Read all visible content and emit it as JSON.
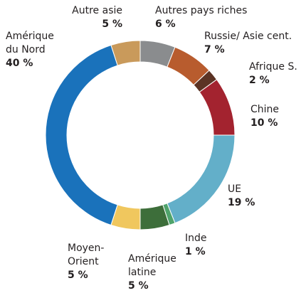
{
  "chart_data": {
    "type": "donut",
    "categories": [
      "Autre asie",
      "Autres pays riches",
      "Russie/ Asie cent.",
      "Afrique S.",
      "Chine",
      "UE",
      "Inde",
      "Amérique latine",
      "Moyen-Orient",
      "Amérique du Nord"
    ],
    "values": [
      5,
      6,
      7,
      2,
      10,
      19,
      1,
      5,
      5,
      40
    ],
    "value_labels": [
      "5 %",
      "6 %",
      "7 %",
      "2 %",
      "10 %",
      "19 %",
      "1 %",
      "5 %",
      "5 %",
      "40 %"
    ],
    "colors": [
      "#c99a5b",
      "#8a8c8e",
      "#b85c2e",
      "#5b3324",
      "#a3232f",
      "#63afc9",
      "#4fa36b",
      "#3d6e3a",
      "#f0c75e",
      "#1a72bb"
    ]
  }
}
